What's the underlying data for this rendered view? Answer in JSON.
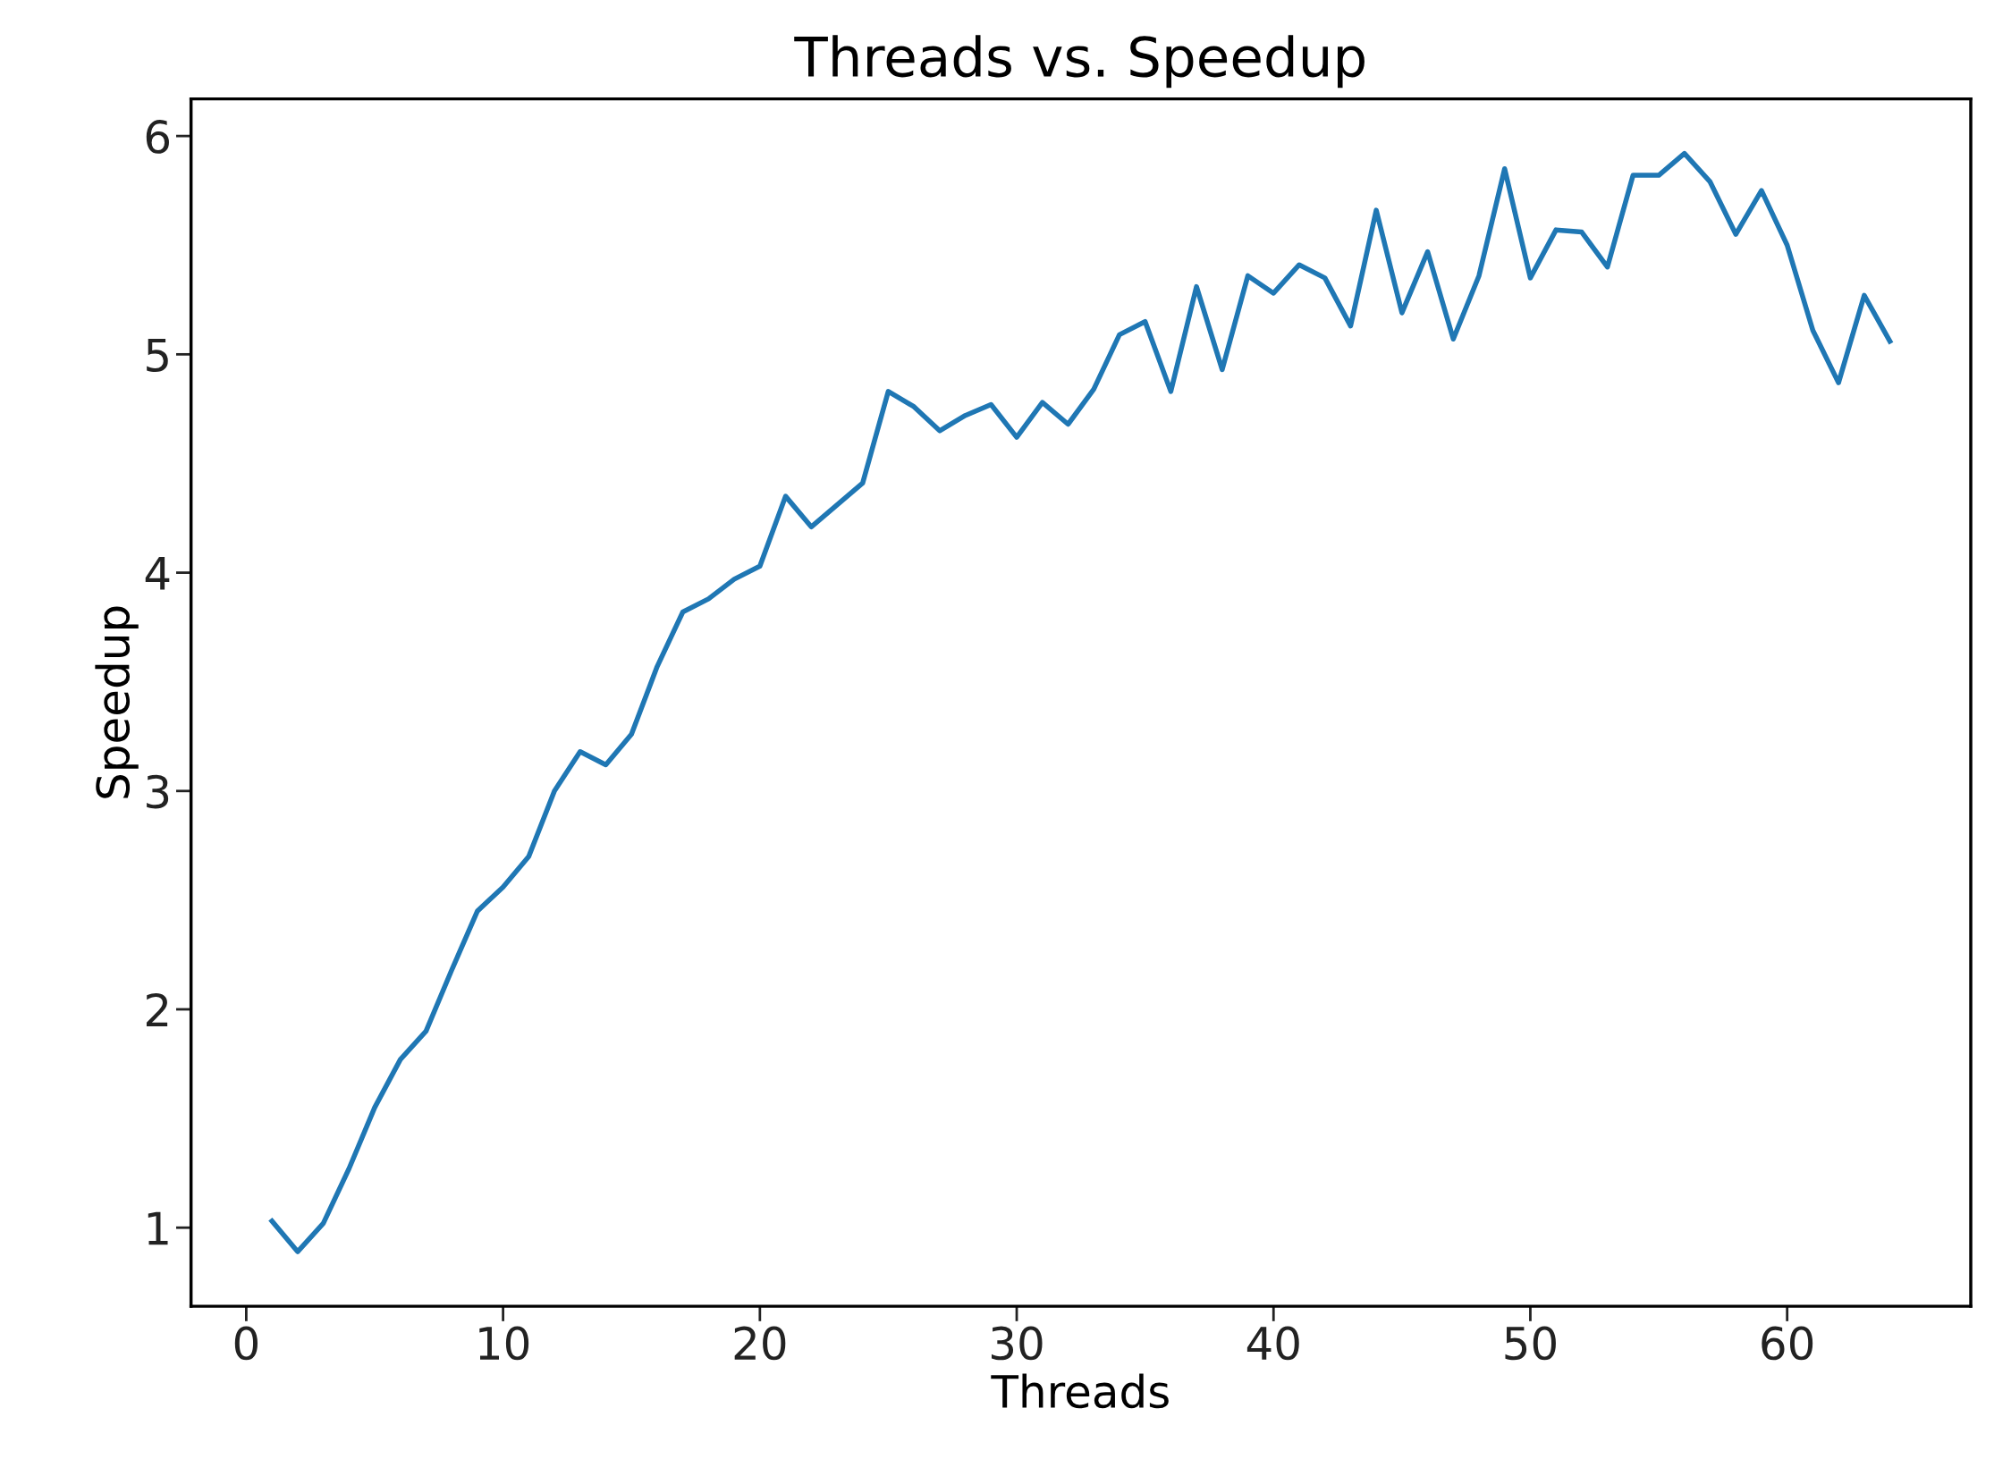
{
  "chart_data": {
    "type": "line",
    "title": "Threads vs. Speedup",
    "xlabel": "Threads",
    "ylabel": "Speedup",
    "x": [
      1,
      2,
      3,
      4,
      5,
      6,
      7,
      8,
      9,
      10,
      11,
      12,
      13,
      14,
      15,
      16,
      17,
      18,
      19,
      20,
      21,
      22,
      23,
      24,
      25,
      26,
      27,
      28,
      29,
      30,
      31,
      32,
      33,
      34,
      35,
      36,
      37,
      38,
      39,
      40,
      41,
      42,
      43,
      44,
      45,
      46,
      47,
      48,
      49,
      50,
      51,
      52,
      53,
      54,
      55,
      56,
      57,
      58,
      59,
      60,
      61,
      62,
      63,
      64
    ],
    "series": [
      {
        "color": "#1f77b4",
        "values": [
          1.03,
          0.89,
          1.02,
          1.27,
          1.55,
          1.77,
          1.9,
          2.18,
          2.45,
          2.56,
          2.7,
          3.0,
          3.18,
          3.12,
          3.26,
          3.57,
          3.82,
          3.88,
          3.97,
          4.03,
          4.35,
          4.21,
          4.31,
          4.41,
          4.83,
          4.76,
          4.65,
          4.72,
          4.77,
          4.62,
          4.78,
          4.68,
          4.84,
          5.09,
          5.15,
          4.83,
          5.31,
          4.93,
          5.36,
          5.28,
          5.41,
          5.35,
          5.13,
          5.66,
          5.19,
          5.47,
          5.07,
          5.36,
          5.85,
          5.35,
          5.57,
          5.56,
          5.4,
          5.82,
          5.82,
          5.92,
          5.79,
          5.55,
          5.75,
          5.5,
          5.11,
          4.87,
          5.27,
          5.06
        ]
      }
    ],
    "xlim": [
      -2.15,
      67.15
    ],
    "ylim": [
      0.64,
      6.17
    ],
    "xticks": [
      0,
      10,
      20,
      30,
      40,
      50,
      60
    ],
    "yticks": [
      1,
      2,
      3,
      4,
      5,
      6
    ],
    "line_style": "solid",
    "marker": "none"
  }
}
